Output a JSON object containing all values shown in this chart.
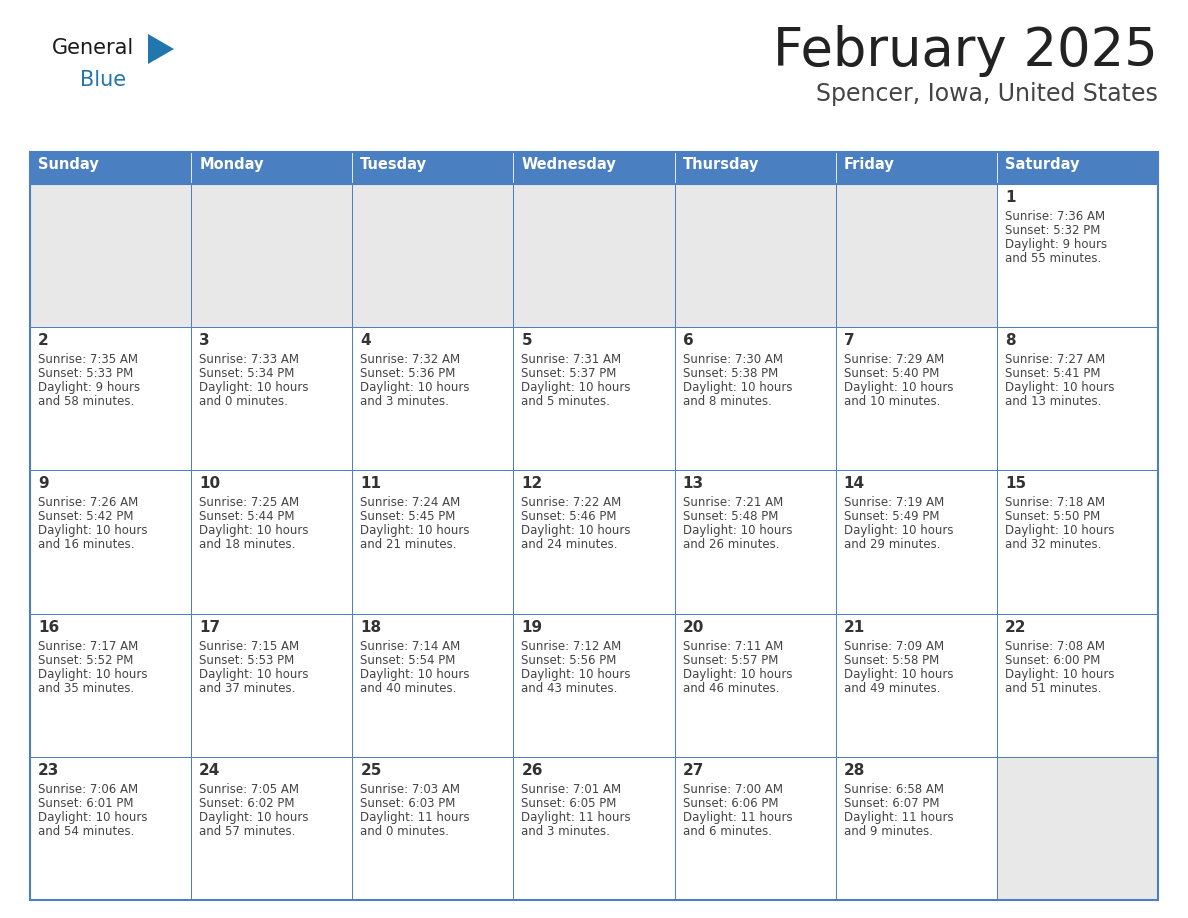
{
  "title": "February 2025",
  "subtitle": "Spencer, Iowa, United States",
  "days_of_week": [
    "Sunday",
    "Monday",
    "Tuesday",
    "Wednesday",
    "Thursday",
    "Friday",
    "Saturday"
  ],
  "header_bg": "#4A7FC1",
  "header_text": "#FFFFFF",
  "cell_bg_white": "#FFFFFF",
  "cell_bg_gray": "#E8E8E8",
  "cell_bg_empty": "#E8E8E8",
  "border_color_outer": "#4A7FC1",
  "border_color_inner": "#4A7FC1",
  "day_num_color": "#333333",
  "info_color": "#444444",
  "title_color": "#222222",
  "subtitle_color": "#444444",
  "logo_general_color": "#1a1a1a",
  "logo_blue_color": "#2176AE",
  "logo_triangle_color": "#2176AE",
  "weeks": [
    [
      {
        "day": null,
        "info": ""
      },
      {
        "day": null,
        "info": ""
      },
      {
        "day": null,
        "info": ""
      },
      {
        "day": null,
        "info": ""
      },
      {
        "day": null,
        "info": ""
      },
      {
        "day": null,
        "info": ""
      },
      {
        "day": 1,
        "info": "Sunrise: 7:36 AM\nSunset: 5:32 PM\nDaylight: 9 hours\nand 55 minutes."
      }
    ],
    [
      {
        "day": 2,
        "info": "Sunrise: 7:35 AM\nSunset: 5:33 PM\nDaylight: 9 hours\nand 58 minutes."
      },
      {
        "day": 3,
        "info": "Sunrise: 7:33 AM\nSunset: 5:34 PM\nDaylight: 10 hours\nand 0 minutes."
      },
      {
        "day": 4,
        "info": "Sunrise: 7:32 AM\nSunset: 5:36 PM\nDaylight: 10 hours\nand 3 minutes."
      },
      {
        "day": 5,
        "info": "Sunrise: 7:31 AM\nSunset: 5:37 PM\nDaylight: 10 hours\nand 5 minutes."
      },
      {
        "day": 6,
        "info": "Sunrise: 7:30 AM\nSunset: 5:38 PM\nDaylight: 10 hours\nand 8 minutes."
      },
      {
        "day": 7,
        "info": "Sunrise: 7:29 AM\nSunset: 5:40 PM\nDaylight: 10 hours\nand 10 minutes."
      },
      {
        "day": 8,
        "info": "Sunrise: 7:27 AM\nSunset: 5:41 PM\nDaylight: 10 hours\nand 13 minutes."
      }
    ],
    [
      {
        "day": 9,
        "info": "Sunrise: 7:26 AM\nSunset: 5:42 PM\nDaylight: 10 hours\nand 16 minutes."
      },
      {
        "day": 10,
        "info": "Sunrise: 7:25 AM\nSunset: 5:44 PM\nDaylight: 10 hours\nand 18 minutes."
      },
      {
        "day": 11,
        "info": "Sunrise: 7:24 AM\nSunset: 5:45 PM\nDaylight: 10 hours\nand 21 minutes."
      },
      {
        "day": 12,
        "info": "Sunrise: 7:22 AM\nSunset: 5:46 PM\nDaylight: 10 hours\nand 24 minutes."
      },
      {
        "day": 13,
        "info": "Sunrise: 7:21 AM\nSunset: 5:48 PM\nDaylight: 10 hours\nand 26 minutes."
      },
      {
        "day": 14,
        "info": "Sunrise: 7:19 AM\nSunset: 5:49 PM\nDaylight: 10 hours\nand 29 minutes."
      },
      {
        "day": 15,
        "info": "Sunrise: 7:18 AM\nSunset: 5:50 PM\nDaylight: 10 hours\nand 32 minutes."
      }
    ],
    [
      {
        "day": 16,
        "info": "Sunrise: 7:17 AM\nSunset: 5:52 PM\nDaylight: 10 hours\nand 35 minutes."
      },
      {
        "day": 17,
        "info": "Sunrise: 7:15 AM\nSunset: 5:53 PM\nDaylight: 10 hours\nand 37 minutes."
      },
      {
        "day": 18,
        "info": "Sunrise: 7:14 AM\nSunset: 5:54 PM\nDaylight: 10 hours\nand 40 minutes."
      },
      {
        "day": 19,
        "info": "Sunrise: 7:12 AM\nSunset: 5:56 PM\nDaylight: 10 hours\nand 43 minutes."
      },
      {
        "day": 20,
        "info": "Sunrise: 7:11 AM\nSunset: 5:57 PM\nDaylight: 10 hours\nand 46 minutes."
      },
      {
        "day": 21,
        "info": "Sunrise: 7:09 AM\nSunset: 5:58 PM\nDaylight: 10 hours\nand 49 minutes."
      },
      {
        "day": 22,
        "info": "Sunrise: 7:08 AM\nSunset: 6:00 PM\nDaylight: 10 hours\nand 51 minutes."
      }
    ],
    [
      {
        "day": 23,
        "info": "Sunrise: 7:06 AM\nSunset: 6:01 PM\nDaylight: 10 hours\nand 54 minutes."
      },
      {
        "day": 24,
        "info": "Sunrise: 7:05 AM\nSunset: 6:02 PM\nDaylight: 10 hours\nand 57 minutes."
      },
      {
        "day": 25,
        "info": "Sunrise: 7:03 AM\nSunset: 6:03 PM\nDaylight: 11 hours\nand 0 minutes."
      },
      {
        "day": 26,
        "info": "Sunrise: 7:01 AM\nSunset: 6:05 PM\nDaylight: 11 hours\nand 3 minutes."
      },
      {
        "day": 27,
        "info": "Sunrise: 7:00 AM\nSunset: 6:06 PM\nDaylight: 11 hours\nand 6 minutes."
      },
      {
        "day": 28,
        "info": "Sunrise: 6:58 AM\nSunset: 6:07 PM\nDaylight: 11 hours\nand 9 minutes."
      },
      {
        "day": null,
        "info": ""
      }
    ]
  ]
}
